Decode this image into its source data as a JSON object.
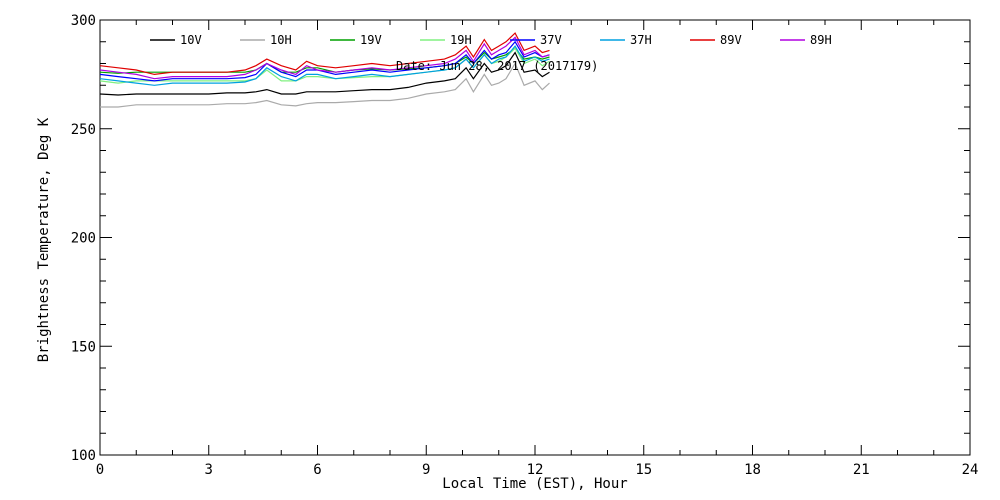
{
  "chart_data": {
    "type": "line",
    "xlabel": "Local Time (EST), Hour",
    "ylabel": "Brightness Temperature, Deg K",
    "annotation": "Date: Jun 28, 2017 (2017179)",
    "xlim": [
      0,
      24
    ],
    "ylim": [
      100,
      300
    ],
    "x_ticks": [
      0,
      3,
      6,
      9,
      12,
      15,
      18,
      21,
      24
    ],
    "y_ticks": [
      100,
      150,
      200,
      250,
      300
    ],
    "grid": false,
    "legend_placement": "top",
    "x": [
      0,
      0.5,
      1,
      1.5,
      2,
      2.5,
      3,
      3.5,
      4,
      4.3,
      4.6,
      5,
      5.4,
      5.7,
      6,
      6.5,
      7,
      7.5,
      8,
      8.5,
      9,
      9.5,
      9.8,
      10.1,
      10.3,
      10.6,
      10.8,
      11,
      11.2,
      11.45,
      11.7,
      12,
      12.2,
      12.4
    ],
    "series": [
      {
        "name": "10V",
        "color": "#000000",
        "values": [
          266,
          265.5,
          266,
          266,
          266,
          266,
          266,
          266.5,
          266.5,
          267,
          268,
          266,
          266,
          267,
          267,
          267,
          267.5,
          268,
          268,
          269,
          271,
          272,
          273,
          278,
          273,
          280,
          276,
          277,
          279,
          285,
          276,
          277,
          274,
          276
        ]
      },
      {
        "name": "10H",
        "color": "#aaaaaa",
        "values": [
          260,
          260,
          261,
          261,
          261,
          261,
          261,
          261.5,
          261.5,
          262,
          263,
          261,
          260.5,
          261.5,
          262,
          262,
          262.5,
          263,
          263,
          264,
          266,
          267,
          268,
          273,
          267,
          275,
          270,
          271,
          273,
          280,
          270,
          272,
          268,
          271
        ]
      },
      {
        "name": "19V",
        "color": "#00a000",
        "values": [
          276,
          275.5,
          276,
          276,
          276,
          276,
          276,
          276,
          276,
          277,
          280,
          276,
          276,
          278,
          278,
          276,
          277,
          277.5,
          277,
          277.5,
          278,
          279,
          280,
          283,
          280,
          285,
          282,
          283,
          284,
          287,
          282,
          283,
          282,
          283
        ]
      },
      {
        "name": "19H",
        "color": "#80f080",
        "values": [
          272,
          271,
          272,
          272,
          272,
          272,
          272,
          272,
          272,
          273,
          277,
          272,
          272,
          274,
          274,
          273,
          273.5,
          274,
          274,
          275,
          276,
          277,
          278,
          282,
          278,
          284,
          280,
          281,
          283,
          287,
          280,
          282,
          279,
          281
        ]
      },
      {
        "name": "37V",
        "color": "#0000ff",
        "values": [
          275,
          274,
          273,
          272,
          273,
          273,
          273,
          273,
          273.5,
          275,
          280,
          276,
          274,
          277,
          277,
          275,
          276,
          277,
          276,
          277,
          278,
          279,
          280,
          284,
          280,
          286,
          282,
          284,
          285,
          290,
          283,
          285,
          283,
          284
        ]
      },
      {
        "name": "37H",
        "color": "#00a0e0",
        "values": [
          273,
          272,
          271,
          270,
          271,
          271,
          271,
          271,
          271.5,
          273,
          278,
          274,
          272,
          275,
          275,
          273,
          274,
          275,
          274,
          275,
          276,
          277,
          278,
          282,
          278,
          284,
          280,
          282,
          283,
          288,
          281,
          283,
          281,
          282
        ]
      },
      {
        "name": "89V",
        "color": "#e00000",
        "values": [
          279,
          278,
          277,
          275,
          276,
          276,
          276,
          276,
          277,
          279,
          282,
          279,
          277,
          281,
          279,
          278,
          279,
          280,
          279,
          280,
          281,
          282,
          284,
          288,
          283,
          291,
          286,
          288,
          290,
          294,
          286,
          288,
          285,
          286
        ]
      },
      {
        "name": "89H",
        "color": "#b000e0",
        "values": [
          277,
          276,
          275,
          273,
          274,
          274,
          274,
          274,
          275,
          277,
          280,
          277,
          275,
          279,
          277,
          276,
          277,
          278,
          277,
          278,
          279,
          280,
          282,
          286,
          281,
          289,
          284,
          286,
          288,
          292,
          284,
          286,
          283,
          284
        ]
      }
    ]
  }
}
